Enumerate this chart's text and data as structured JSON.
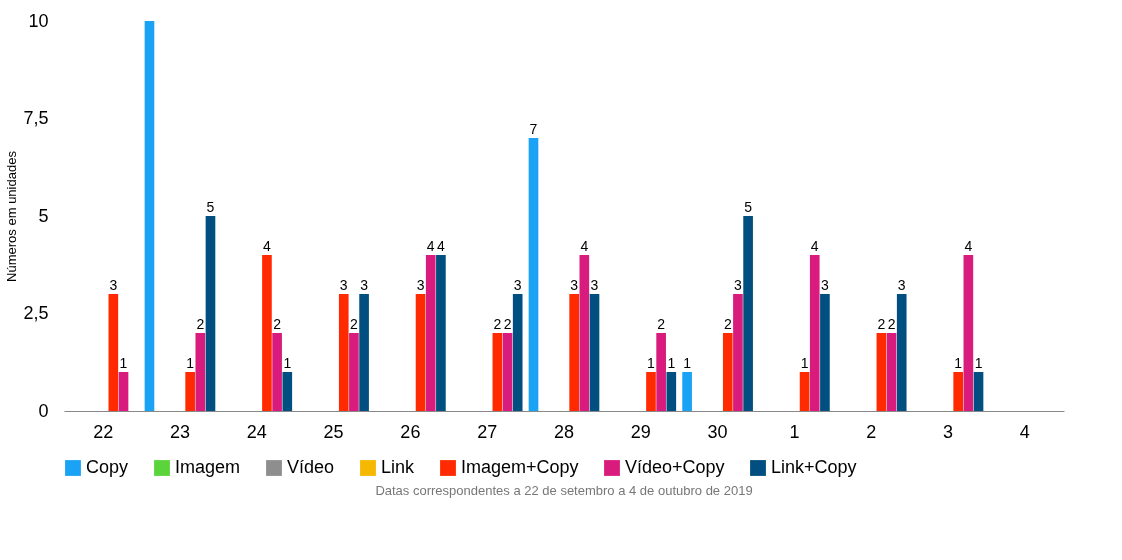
{
  "chart_data": {
    "type": "bar",
    "ylabel": "Números em unidades",
    "categories": [
      "22",
      "23",
      "24",
      "25",
      "26",
      "27",
      "28",
      "29",
      "30",
      "1",
      "2",
      "3",
      "4"
    ],
    "series": [
      {
        "name": "Copy",
        "color": "#1aa3f5",
        "values": [
          null,
          10,
          null,
          null,
          null,
          null,
          7,
          null,
          1,
          null,
          null,
          null,
          null
        ],
        "value_labels": [
          null,
          null,
          null,
          null,
          null,
          null,
          "7",
          null,
          "1",
          null,
          null,
          null,
          null
        ]
      },
      {
        "name": "Imagem",
        "color": "#5ad43a",
        "values": [
          null,
          null,
          null,
          null,
          null,
          null,
          null,
          null,
          null,
          null,
          null,
          null,
          null
        ]
      },
      {
        "name": "Vídeo",
        "color": "#8e8e8e",
        "values": [
          null,
          null,
          null,
          null,
          null,
          null,
          null,
          null,
          null,
          null,
          null,
          null,
          null
        ]
      },
      {
        "name": "Link",
        "color": "#f6b800",
        "values": [
          null,
          null,
          null,
          null,
          null,
          null,
          null,
          null,
          null,
          null,
          null,
          null,
          null
        ]
      },
      {
        "name": "Imagem+Copy",
        "color": "#ff2a00",
        "values": [
          3,
          1,
          4,
          3,
          3,
          2,
          3,
          1,
          2,
          1,
          2,
          1,
          null
        ],
        "value_labels": [
          "3",
          "1",
          "4",
          "3",
          "3",
          "2",
          "3",
          "1",
          "2",
          "1",
          "2",
          "1",
          null
        ]
      },
      {
        "name": "Vídeo+Copy",
        "color": "#d81b7c",
        "values": [
          1,
          2,
          2,
          2,
          4,
          2,
          4,
          2,
          3,
          4,
          2,
          4,
          null
        ],
        "value_labels": [
          "1",
          "2",
          "2",
          "2",
          "4",
          "2",
          "4",
          "2",
          "3",
          "4",
          "2",
          "4",
          null
        ]
      },
      {
        "name": "Link+Copy",
        "color": "#004f80",
        "values": [
          null,
          5,
          1,
          3,
          4,
          3,
          3,
          1,
          5,
          3,
          3,
          1,
          null
        ],
        "value_labels": [
          null,
          "5",
          "1",
          "3",
          "4",
          "3",
          "3",
          "1",
          "5",
          "3",
          "3",
          "1",
          null
        ]
      }
    ],
    "ylim": [
      0,
      10
    ],
    "yticks": [
      0,
      {
        "value": 2.5,
        "label": "2,5"
      },
      5,
      {
        "value": 7.5,
        "label": "7,5"
      },
      10
    ],
    "grid": false,
    "legend": "bottom",
    "annotations": [
      "Datas correspondentes a 22 de setembro a 4 de outubro de 2019"
    ]
  }
}
